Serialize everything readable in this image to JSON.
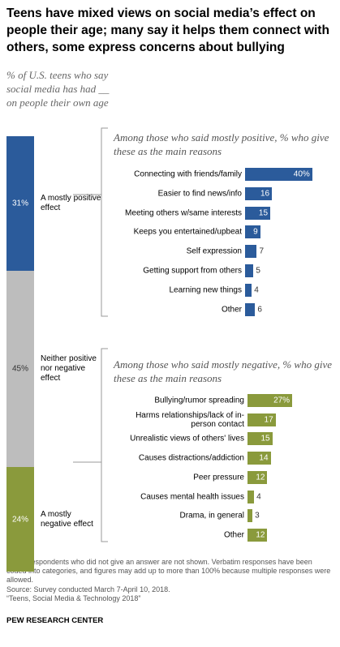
{
  "title": "Teens have mixed views on social media’s effect on people their age; many say it helps them connect with others, some express concerns about bullying",
  "subtitle": "% of U.S. teens who say social media has had __ on people their own age",
  "chart_data": [
    {
      "type": "stacked-bar",
      "categories": [
        "A mostly positive effect",
        "Neither positive nor negative effect",
        "A mostly negative effect"
      ],
      "values": [
        31,
        45,
        24
      ],
      "value_labels": [
        "31%",
        "45%",
        "24%"
      ],
      "colors": [
        "#2b5b9b",
        "#bdbdbd",
        "#8a9a3c"
      ]
    },
    {
      "type": "bar",
      "subtitle": "Among those who said mostly positive, % who give these as the main reasons",
      "categories": [
        "Connecting with friends/family",
        "Easier to find news/info",
        "Meeting others w/same interests",
        "Keeps you entertained/upbeat",
        "Self expression",
        "Getting support from others",
        "Learning new things",
        "Other"
      ],
      "values": [
        40,
        16,
        15,
        9,
        7,
        5,
        4,
        6
      ],
      "value_labels": [
        "40%",
        "16",
        "15",
        "9",
        "7",
        "5",
        "4",
        "6"
      ],
      "color": "#2b5b9b"
    },
    {
      "type": "bar",
      "subtitle": "Among those who said mostly negative, % who give these as the main reasons",
      "categories": [
        "Bullying/rumor spreading",
        "Harms relationships/lack of in-person contact",
        "Unrealistic views of others' lives",
        "Causes distractions/addiction",
        "Peer pressure",
        "Causes mental health issues",
        "Drama, in general",
        "Other"
      ],
      "values": [
        27,
        17,
        15,
        14,
        12,
        4,
        3,
        12
      ],
      "value_labels": [
        "27%",
        "17",
        "15",
        "14",
        "12",
        "4",
        "3",
        "12"
      ],
      "color": "#8a9a3c"
    }
  ],
  "note": "Note: Respondents who did not give an answer are not shown. Verbatim responses have been coded into categories, and figures may add up to more than 100% because multiple responses were allowed.",
  "source": "Source: Survey conducted March 7-April 10, 2018.",
  "report": "“Teens, Social Media & Technology 2018”",
  "org": "PEW RESEARCH CENTER"
}
